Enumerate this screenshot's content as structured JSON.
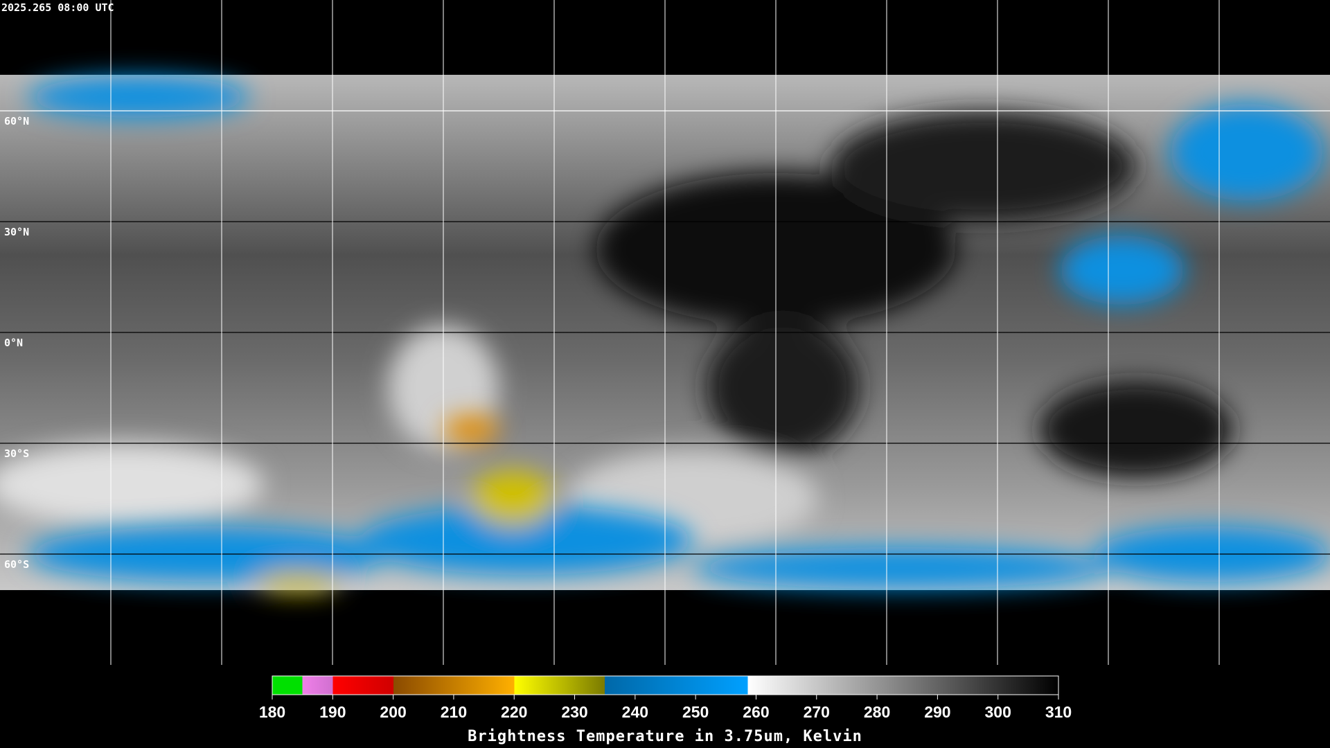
{
  "header": {
    "timestamp": "2025.265 08:00 UTC"
  },
  "map": {
    "lat_labels": [
      "60°N",
      "30°N",
      "0°N",
      "30°S",
      "60°S"
    ]
  },
  "colorbar": {
    "ticks": [
      180,
      190,
      200,
      210,
      220,
      230,
      240,
      250,
      260,
      270,
      280,
      290,
      300,
      310
    ],
    "title": "Brightness Temperature in 3.75um, Kelvin"
  }
}
